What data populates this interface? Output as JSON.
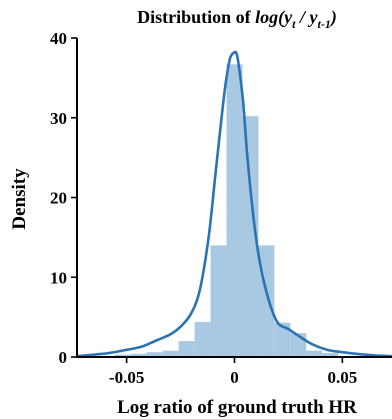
{
  "chart_data": {
    "type": "histogram",
    "title_prefix": "Distribution of ",
    "title_math": {
      "log": "log(",
      "y_t": "y",
      "t_sub": "t",
      "slash": " / ",
      "y_prev": "y",
      "prev_sub": "t-1",
      "close": ")"
    },
    "xlabel": "Log ratio of ground truth HR",
    "ylabel": "Density",
    "xlim": [
      -0.073,
      0.073
    ],
    "ylim": [
      0,
      40
    ],
    "xticks": [
      {
        "value": -0.05,
        "label": "-0.05"
      },
      {
        "value": 0.0,
        "label": "0"
      },
      {
        "value": 0.05,
        "label": "0.05"
      }
    ],
    "yticks": [
      {
        "value": 0,
        "label": "0"
      },
      {
        "value": 10,
        "label": "10"
      },
      {
        "value": 20,
        "label": "20"
      },
      {
        "value": 30,
        "label": "30"
      },
      {
        "value": 40,
        "label": "40"
      }
    ],
    "grid": false,
    "bin_width": 0.0074,
    "bins": [
      {
        "x0": -0.0555,
        "height": 0.3
      },
      {
        "x0": -0.0481,
        "height": 0.4
      },
      {
        "x0": -0.0407,
        "height": 0.6
      },
      {
        "x0": -0.0333,
        "height": 0.8
      },
      {
        "x0": -0.0259,
        "height": 2.0
      },
      {
        "x0": -0.0185,
        "height": 4.4
      },
      {
        "x0": -0.0111,
        "height": 14.0
      },
      {
        "x0": -0.0037,
        "height": 36.7
      },
      {
        "x0": 0.0037,
        "height": 30.2
      },
      {
        "x0": 0.0111,
        "height": 14.0
      },
      {
        "x0": 0.0185,
        "height": 4.3
      },
      {
        "x0": 0.0259,
        "height": 3.0
      },
      {
        "x0": 0.0333,
        "height": 0.8
      },
      {
        "x0": 0.0407,
        "height": 0.5
      }
    ],
    "kde": {
      "x": [
        -0.073,
        -0.065,
        -0.058,
        -0.05,
        -0.043,
        -0.036,
        -0.03,
        -0.025,
        -0.02,
        -0.016,
        -0.012,
        -0.009,
        -0.006,
        -0.004,
        -0.002,
        0.0,
        0.001,
        0.002,
        0.004,
        0.006,
        0.009,
        0.012,
        0.016,
        0.02,
        0.025,
        0.03,
        0.036,
        0.043,
        0.05,
        0.058,
        0.065,
        0.073
      ],
      "y": [
        0.1,
        0.3,
        0.5,
        0.9,
        1.3,
        2.1,
        2.8,
        3.8,
        5.5,
        8.5,
        15.0,
        22.5,
        30.0,
        34.5,
        37.5,
        38.2,
        38.0,
        36.5,
        32.0,
        25.0,
        17.0,
        11.5,
        7.0,
        4.3,
        3.5,
        2.6,
        1.6,
        0.9,
        0.6,
        0.35,
        0.2,
        0.1
      ]
    },
    "colors": {
      "bar": "#a9c9e3",
      "kde": "#2a73b4",
      "axis": "#000000"
    }
  }
}
